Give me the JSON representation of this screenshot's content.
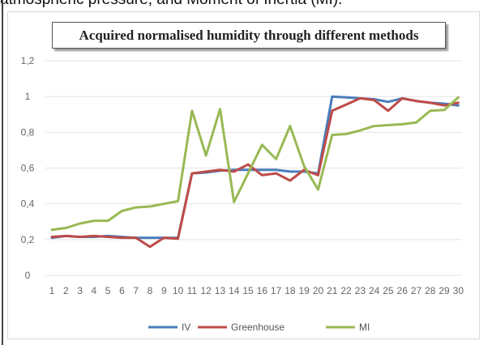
{
  "caption": "atmospheric pressure, and Moment of Inertia (MI).",
  "chart_data": {
    "type": "line",
    "title": "Acquired normalised humidity through different methods",
    "xlabel": "",
    "ylabel": "",
    "x": [
      1,
      2,
      3,
      4,
      5,
      6,
      7,
      8,
      9,
      10,
      11,
      12,
      13,
      14,
      15,
      16,
      17,
      18,
      19,
      20,
      21,
      22,
      23,
      24,
      25,
      26,
      27,
      28,
      29,
      30
    ],
    "x_tick_labels": [
      "1",
      "2",
      "3",
      "4",
      "5",
      "6",
      "7",
      "8",
      "9",
      "10",
      "11",
      "12",
      "13",
      "14",
      "15",
      "16",
      "17",
      "18",
      "19",
      "20",
      "21",
      "22",
      "23",
      "24",
      "25",
      "26",
      "27",
      "28",
      "29",
      "30"
    ],
    "ylim": [
      0,
      1.2
    ],
    "y_ticks": [
      0,
      0.2,
      0.4,
      0.6,
      0.8,
      1,
      1.2
    ],
    "y_tick_labels": [
      "0",
      "0,2",
      "0,4",
      "0,6",
      "0,8",
      "1",
      "1,2"
    ],
    "grid": "horizontal",
    "legend": "bottom",
    "series": [
      {
        "name": "IV",
        "color": "#4a7ebb",
        "values": [
          0.21,
          0.22,
          0.215,
          0.215,
          0.22,
          0.215,
          0.21,
          0.21,
          0.21,
          0.21,
          0.57,
          0.575,
          0.585,
          0.59,
          0.59,
          0.59,
          0.59,
          0.58,
          0.58,
          0.57,
          1.0,
          0.995,
          0.99,
          0.985,
          0.97,
          0.99,
          0.975,
          0.965,
          0.96,
          0.95
        ]
      },
      {
        "name": "Greenhouse",
        "color": "#be4b48",
        "values": [
          0.215,
          0.22,
          0.215,
          0.22,
          0.215,
          0.21,
          0.21,
          0.16,
          0.21,
          0.205,
          0.57,
          0.58,
          0.59,
          0.58,
          0.62,
          0.56,
          0.57,
          0.53,
          0.59,
          0.56,
          0.92,
          0.955,
          0.99,
          0.98,
          0.92,
          0.99,
          0.975,
          0.965,
          0.95,
          0.965
        ]
      },
      {
        "name": "MI",
        "color": "#98b954",
        "values": [
          0.255,
          0.265,
          0.29,
          0.305,
          0.305,
          0.36,
          0.38,
          0.385,
          0.4,
          0.415,
          0.92,
          0.67,
          0.93,
          0.41,
          0.57,
          0.73,
          0.65,
          0.835,
          0.61,
          0.48,
          0.785,
          0.79,
          0.81,
          0.835,
          0.84,
          0.845,
          0.855,
          0.92,
          0.925,
          0.995
        ]
      }
    ]
  }
}
